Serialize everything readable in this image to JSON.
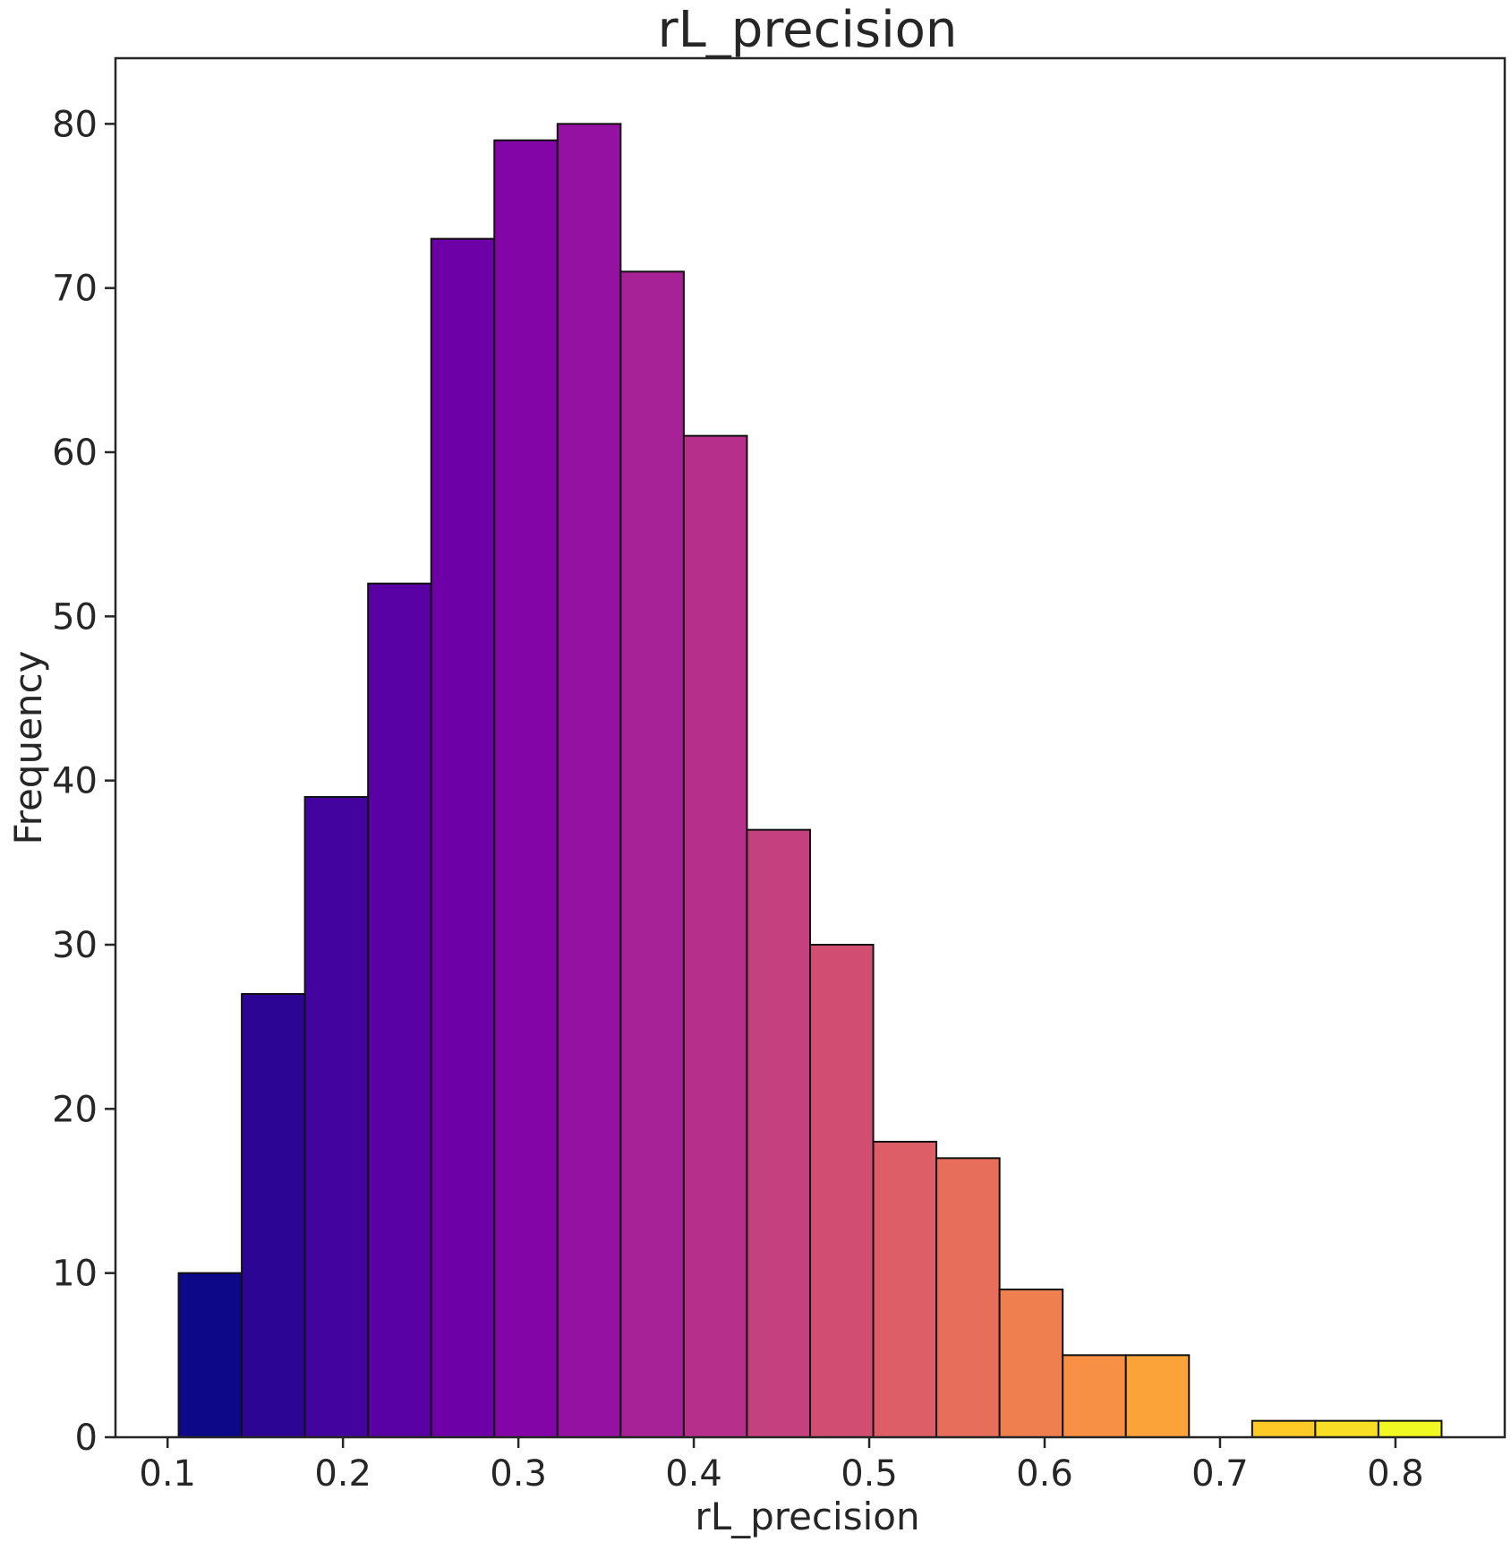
{
  "chart_data": {
    "type": "bar",
    "title": "rL_precision",
    "xlabel": "rL_precision",
    "ylabel": "Frequency",
    "xlim": [
      0.0703,
      0.8623
    ],
    "ylim": [
      0,
      84
    ],
    "grid": false,
    "x_ticks": [
      "0.1",
      "0.2",
      "0.3",
      "0.4",
      "0.5",
      "0.6",
      "0.7",
      "0.8"
    ],
    "x_tick_values": [
      0.1,
      0.2,
      0.3,
      0.4,
      0.5,
      0.6,
      0.7,
      0.8
    ],
    "y_ticks": [
      "0",
      "10",
      "20",
      "30",
      "40",
      "50",
      "60",
      "70",
      "80"
    ],
    "y_tick_values": [
      0,
      10,
      20,
      30,
      40,
      50,
      60,
      70,
      80
    ],
    "bin_edges": [
      0.1063,
      0.1423,
      0.1783,
      0.2143,
      0.2503,
      0.2863,
      0.3223,
      0.3583,
      0.3943,
      0.4303,
      0.4663,
      0.5023,
      0.5383,
      0.5743,
      0.6103,
      0.6463,
      0.6823,
      0.7183,
      0.7543,
      0.7903,
      0.8263
    ],
    "values": [
      10,
      27,
      39,
      52,
      73,
      79,
      80,
      71,
      61,
      37,
      30,
      18,
      17,
      9,
      5,
      5,
      0,
      1,
      1,
      1
    ],
    "colors": [
      "#0d0887",
      "#2c0594",
      "#43039e",
      "#5901a5",
      "#6e00a8",
      "#8305a7",
      "#9511a1",
      "#a72197",
      "#b6308b",
      "#c5407e",
      "#d14e72",
      "#dd5e66",
      "#e76e5b",
      "#f07f4f",
      "#f79044",
      "#fba238",
      "#feb72d",
      "#fdca26",
      "#f8df25",
      "#f0f921"
    ]
  }
}
